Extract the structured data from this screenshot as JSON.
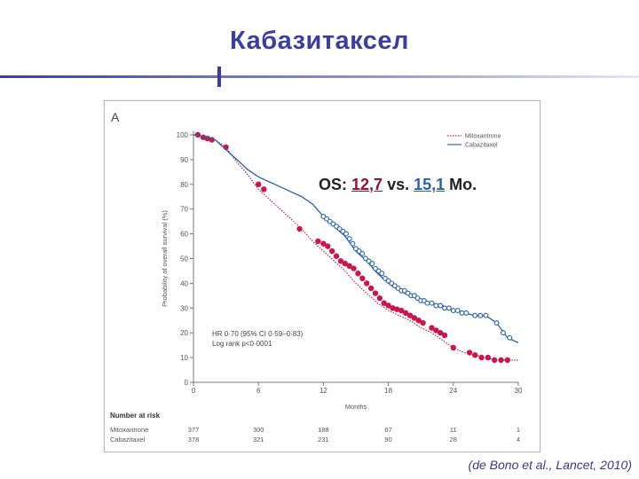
{
  "slide": {
    "title": "Кабазитаксел",
    "citation": "(de Bono et al., Lancet, 2010)",
    "panel_letter": "A",
    "os_text": {
      "prefix": "OS: ",
      "value_a": "12,7",
      "middle": " vs. ",
      "value_b": "15,1",
      "suffix": " Mo."
    }
  },
  "colors": {
    "title": "#3b3f9a",
    "mitoxantrone": "#c8174a",
    "cabazitaxel": "#2b63a8",
    "os_a": "#8b1538",
    "os_b": "#2b63a8",
    "citation": "#3a3a8a"
  },
  "chart_data": {
    "type": "line",
    "ylabel": "Probability of overall survival (%)",
    "xlabel": "Months",
    "xlim": [
      0,
      30
    ],
    "ylim": [
      0,
      100
    ],
    "xticks": [
      0,
      6,
      12,
      18,
      24,
      30
    ],
    "yticks": [
      0,
      10,
      20,
      30,
      40,
      50,
      60,
      70,
      80,
      90,
      100
    ],
    "legend_position": "top-right",
    "stats": [
      "HR 0·70 (95% CI 0·59–0·83)",
      "Log rank p<0·0001"
    ],
    "series": [
      {
        "name": "Mitoxantrone",
        "color": "#c8174a",
        "line_style": "dotted",
        "points": [
          [
            0,
            100
          ],
          [
            0.6,
            99
          ],
          [
            1.2,
            98.5
          ],
          [
            2,
            98
          ],
          [
            3,
            95
          ],
          [
            4,
            89
          ],
          [
            5,
            84
          ],
          [
            6,
            78
          ],
          [
            7,
            74
          ],
          [
            8,
            70
          ],
          [
            9,
            66
          ],
          [
            10,
            62
          ],
          [
            11,
            57
          ],
          [
            12,
            53
          ],
          [
            13,
            49
          ],
          [
            14,
            45
          ],
          [
            15,
            40
          ],
          [
            16,
            36
          ],
          [
            17,
            32
          ],
          [
            18,
            29
          ],
          [
            19,
            27
          ],
          [
            20,
            25
          ],
          [
            21,
            22
          ],
          [
            22,
            20
          ],
          [
            23,
            17
          ],
          [
            24,
            14
          ],
          [
            25,
            12
          ],
          [
            26,
            11
          ],
          [
            27,
            10
          ],
          [
            28,
            9
          ],
          [
            29,
            9
          ],
          [
            30,
            9
          ]
        ],
        "censor_marks": [
          [
            0.4,
            100
          ],
          [
            0.9,
            99
          ],
          [
            1.3,
            98.5
          ],
          [
            1.7,
            98
          ],
          [
            3,
            95
          ],
          [
            6,
            80
          ],
          [
            6.5,
            78
          ],
          [
            9.8,
            62
          ],
          [
            11.5,
            57
          ],
          [
            12,
            56
          ],
          [
            12.4,
            55
          ],
          [
            12.8,
            53
          ],
          [
            13.2,
            51
          ],
          [
            13.6,
            49
          ],
          [
            14,
            48
          ],
          [
            14.4,
            47
          ],
          [
            14.8,
            46
          ],
          [
            15.2,
            44
          ],
          [
            15.6,
            42
          ],
          [
            16,
            40
          ],
          [
            16.4,
            38
          ],
          [
            16.8,
            36
          ],
          [
            17.2,
            34
          ],
          [
            17.6,
            32
          ],
          [
            18,
            31
          ],
          [
            18.4,
            30
          ],
          [
            18.8,
            29.5
          ],
          [
            19.2,
            29
          ],
          [
            19.6,
            28
          ],
          [
            20,
            27
          ],
          [
            20.4,
            26
          ],
          [
            20.8,
            25
          ],
          [
            21.2,
            24
          ],
          [
            22,
            22
          ],
          [
            22.4,
            21
          ],
          [
            22.8,
            20
          ],
          [
            23.2,
            19
          ],
          [
            24,
            14
          ],
          [
            25.5,
            12
          ],
          [
            26,
            11
          ],
          [
            26.6,
            10
          ],
          [
            27.2,
            10
          ],
          [
            27.8,
            9
          ],
          [
            28.4,
            9
          ],
          [
            29,
            9
          ]
        ]
      },
      {
        "name": "Cabazitaxel",
        "color": "#2b63a8",
        "line_style": "solid",
        "points": [
          [
            0,
            100
          ],
          [
            0.6,
            99.5
          ],
          [
            1.2,
            99
          ],
          [
            2,
            98
          ],
          [
            3,
            94
          ],
          [
            4,
            90
          ],
          [
            5,
            86
          ],
          [
            6,
            83
          ],
          [
            7,
            81
          ],
          [
            8,
            79
          ],
          [
            9,
            77
          ],
          [
            10,
            75
          ],
          [
            11,
            72
          ],
          [
            12,
            67
          ],
          [
            13,
            63
          ],
          [
            14,
            59
          ],
          [
            15,
            53
          ],
          [
            16,
            49
          ],
          [
            17,
            44
          ],
          [
            18,
            40
          ],
          [
            19,
            37
          ],
          [
            20,
            35
          ],
          [
            21,
            33
          ],
          [
            22,
            32
          ],
          [
            23,
            31
          ],
          [
            24,
            29
          ],
          [
            25,
            28
          ],
          [
            26,
            27
          ],
          [
            27,
            27
          ],
          [
            28,
            24
          ],
          [
            29,
            18
          ],
          [
            30,
            16
          ]
        ],
        "censor_marks": [
          [
            12,
            67
          ],
          [
            12.3,
            66
          ],
          [
            12.6,
            65
          ],
          [
            12.9,
            64
          ],
          [
            13.2,
            63
          ],
          [
            13.5,
            62
          ],
          [
            13.8,
            61
          ],
          [
            14.1,
            60
          ],
          [
            14.4,
            58
          ],
          [
            14.7,
            56
          ],
          [
            15,
            54
          ],
          [
            15.3,
            53
          ],
          [
            15.6,
            52
          ],
          [
            15.9,
            50
          ],
          [
            16.2,
            49
          ],
          [
            16.5,
            48
          ],
          [
            16.8,
            46
          ],
          [
            17.1,
            45
          ],
          [
            17.4,
            44
          ],
          [
            17.7,
            42
          ],
          [
            18,
            41
          ],
          [
            18.3,
            40
          ],
          [
            18.6,
            39
          ],
          [
            18.9,
            38
          ],
          [
            19.2,
            37
          ],
          [
            19.5,
            37
          ],
          [
            19.8,
            36
          ],
          [
            20.1,
            35
          ],
          [
            20.4,
            35
          ],
          [
            20.7,
            34
          ],
          [
            21,
            33
          ],
          [
            21.3,
            33
          ],
          [
            21.6,
            32
          ],
          [
            22,
            32
          ],
          [
            22.4,
            31
          ],
          [
            22.8,
            31
          ],
          [
            23.2,
            30
          ],
          [
            23.6,
            30
          ],
          [
            24,
            29
          ],
          [
            24.4,
            29
          ],
          [
            24.8,
            28
          ],
          [
            25.2,
            28
          ],
          [
            26,
            27
          ],
          [
            26.5,
            27
          ],
          [
            27,
            27
          ],
          [
            28,
            24
          ],
          [
            28.6,
            20
          ],
          [
            29.2,
            18
          ]
        ]
      }
    ],
    "risk_table": {
      "title": "Number at risk",
      "times": [
        0,
        6,
        12,
        18,
        24,
        30
      ],
      "rows": [
        {
          "name": "Mitoxantrone",
          "values": [
            "377",
            "300",
            "188",
            "67",
            "11",
            "1"
          ]
        },
        {
          "name": "Cabazitaxel",
          "values": [
            "378",
            "321",
            "231",
            "90",
            "28",
            "4"
          ]
        }
      ]
    }
  }
}
